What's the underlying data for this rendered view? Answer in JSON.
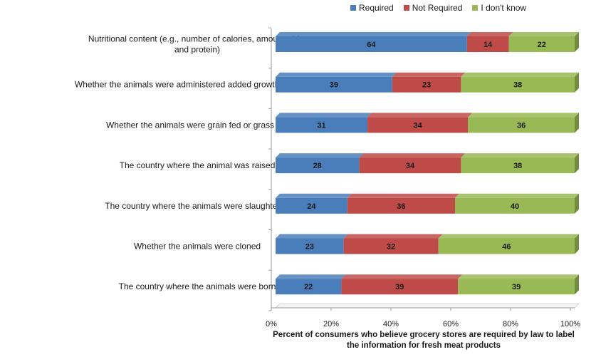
{
  "colors": {
    "required": "#4a7ebb",
    "not_required": "#be4b48",
    "dont_know": "#98b954"
  },
  "chart_data": {
    "type": "bar",
    "orientation": "horizontal",
    "stacked": "percent",
    "style": "3d",
    "categories": [
      "Nutritional content (e.g., number of calories, amount of fat and protein)",
      "Whether the animals were administered added growth hormones",
      "Whether the animals were grain fed or grass fed",
      "The country where the animal was raised",
      "The country where the animals were slaughtered",
      "Whether the animals were cloned",
      "The country where the animals were born"
    ],
    "series": [
      {
        "name": "Required",
        "values": [
          64,
          39,
          31,
          28,
          24,
          23,
          22
        ]
      },
      {
        "name": "Not Required",
        "values": [
          14,
          23,
          34,
          34,
          36,
          32,
          39
        ]
      },
      {
        "name": "I don't know",
        "values": [
          22,
          38,
          36,
          38,
          40,
          46,
          39
        ]
      }
    ],
    "xlabel": "Percent of consumers who believe grocery stores are required by law to label the information for fresh meat products",
    "xticks": [
      "0%",
      "20%",
      "40%",
      "60%",
      "80%",
      "100%"
    ],
    "xlim": [
      0,
      100
    ],
    "legend": "top",
    "grid": false
  }
}
